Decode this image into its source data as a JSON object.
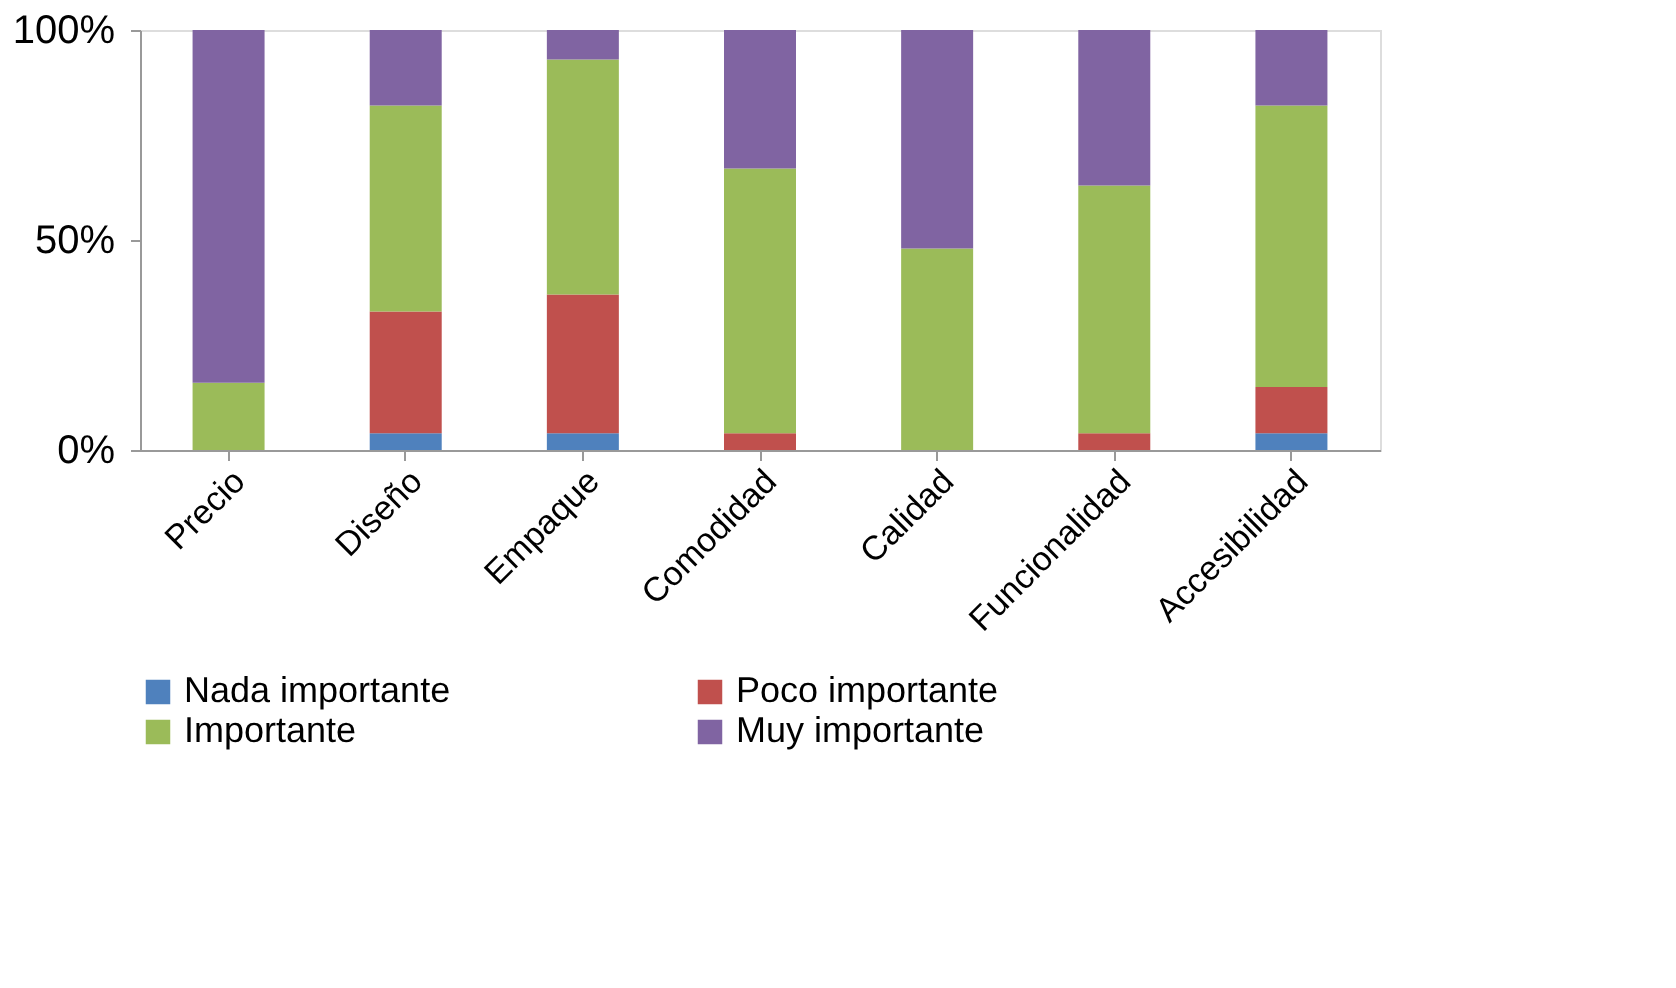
{
  "chart_data": {
    "type": "bar",
    "stacked": true,
    "categories": [
      "Precio",
      "Diseño",
      "Empaque",
      "Comodidad",
      "Calidad",
      "Funcionalidad",
      "Accesibilidad"
    ],
    "series": [
      {
        "name": "Nada importante",
        "color": "#4f81bd",
        "values": [
          0,
          4,
          4,
          0,
          0,
          0,
          4
        ]
      },
      {
        "name": "Poco importante",
        "color": "#c0504d",
        "values": [
          0,
          29,
          33,
          4,
          0,
          4,
          11
        ]
      },
      {
        "name": "Importante",
        "color": "#9bbb59",
        "values": [
          16,
          49,
          56,
          63,
          48,
          59,
          67
        ]
      },
      {
        "name": "Muy importante",
        "color": "#8064a2",
        "values": [
          84,
          18,
          7,
          33,
          52,
          37,
          18
        ]
      }
    ],
    "ylim": [
      0,
      100
    ],
    "yticks": [
      {
        "value": 0,
        "label": "0%"
      },
      {
        "value": 50,
        "label": "50%"
      },
      {
        "value": 100,
        "label": "100%"
      }
    ],
    "grid": false,
    "legend": "bottom"
  }
}
